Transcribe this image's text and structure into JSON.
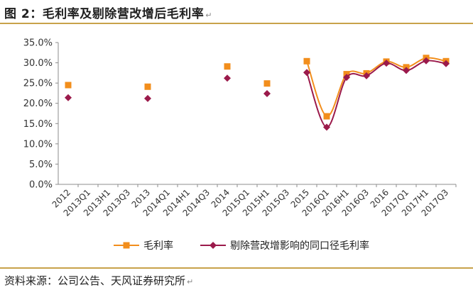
{
  "figure": {
    "title": "图 2：毛利率及剔除营改增后毛利率",
    "para_mark": "↵",
    "source": "资料来源：公司公告、天风证券研究所"
  },
  "chart_data": {
    "type": "line",
    "title": "",
    "xlabel": "",
    "ylabel": "",
    "ylim": [
      0,
      35
    ],
    "ytick_step": 5,
    "ytick_labels": [
      "0.0%",
      "5.0%",
      "10.0%",
      "15.0%",
      "20.0%",
      "25.0%",
      "30.0%",
      "35.0%"
    ],
    "categories": [
      "2012",
      "2013Q1",
      "2013H1",
      "2013Q3",
      "2013",
      "2014Q1",
      "2014H1",
      "2014Q3",
      "2014",
      "2015Q1",
      "2015H1",
      "2015Q3",
      "2015",
      "2016Q1",
      "2016H1",
      "2016Q3",
      "2016",
      "2017Q1",
      "2017H1",
      "2017Q3"
    ],
    "legend_position": "bottom",
    "series": [
      {
        "name": "毛利率",
        "color": "#f28e1c",
        "marker": "square",
        "values": [
          24.5,
          null,
          null,
          null,
          24.1,
          null,
          null,
          null,
          29.1,
          null,
          24.9,
          null,
          30.4,
          16.8,
          27.2,
          27.4,
          30.3,
          28.9,
          31.2,
          30.4
        ]
      },
      {
        "name": "剔除营改增影响的同口径毛利率",
        "color": "#9b1a4b",
        "marker": "diamond",
        "values": [
          21.4,
          null,
          null,
          null,
          21.2,
          null,
          null,
          null,
          26.2,
          null,
          22.4,
          null,
          27.6,
          14.1,
          26.4,
          26.8,
          29.9,
          28.1,
          30.5,
          29.8
        ]
      }
    ]
  }
}
